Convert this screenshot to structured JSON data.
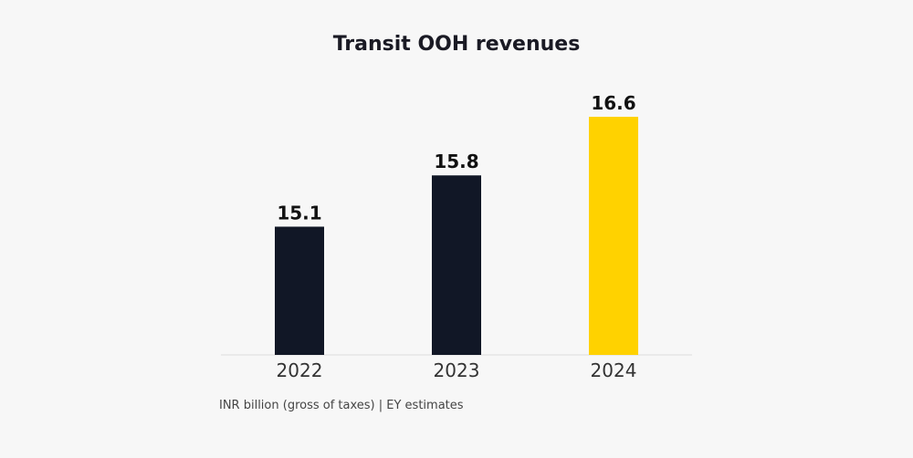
{
  "chart_data": {
    "type": "bar",
    "title": "Transit OOH revenues",
    "categories": [
      "2022",
      "2023",
      "2024"
    ],
    "values": [
      15.1,
      15.8,
      16.6
    ],
    "value_labels": [
      "15.1",
      "15.8",
      "16.6"
    ],
    "xlabel": "",
    "ylabel": "",
    "ylim": [
      13.35,
      16.6
    ],
    "grid": false,
    "legend": "none",
    "colors": {
      "default": "#111726",
      "highlight": "#FFD200",
      "baseline": "#dddddd"
    },
    "highlight_category": "2024"
  },
  "footnote": "INR billion (gross of taxes) | EY estimates"
}
